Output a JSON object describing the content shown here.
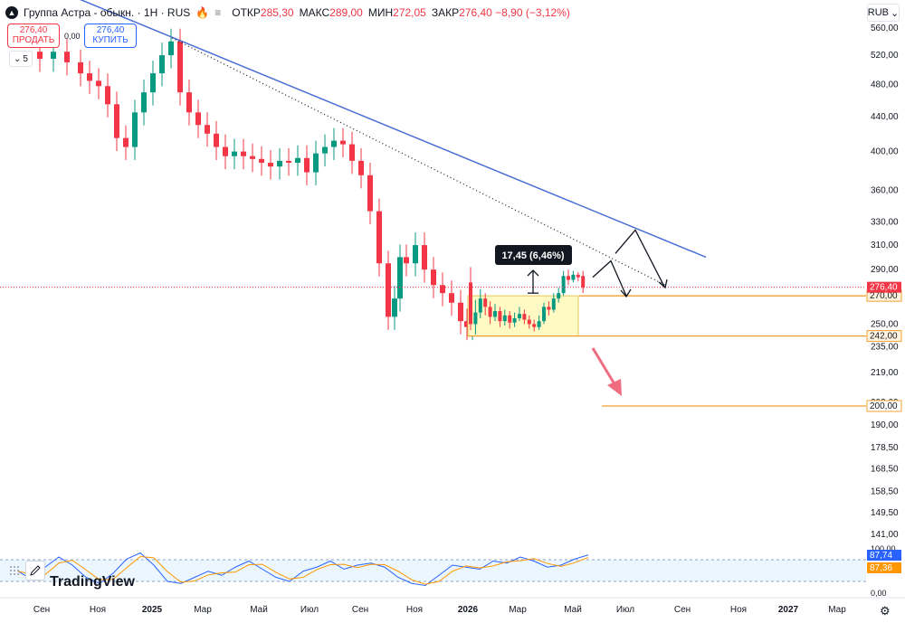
{
  "header": {
    "symbol": "Группа Астра - обыкн. · 1Н · RUS",
    "ohlc": [
      {
        "label": "ОТКР",
        "value": "285,30"
      },
      {
        "label": "МАКС",
        "value": "289,00"
      },
      {
        "label": "МИН",
        "value": "272,05"
      },
      {
        "label": "ЗАКР",
        "value": "276,40 −8,90 (−3,12%)"
      }
    ]
  },
  "trade": {
    "sell_price": "276,40",
    "sell_label": "ПРОДАТЬ",
    "buy_price": "276,40",
    "buy_label": "КУПИТЬ",
    "spread": "0,00"
  },
  "indicator_collapse": "5",
  "currency": "RUB",
  "tv_logo_text": "TradingView",
  "icons": [
    "astra-logo-icon",
    "flame-icon",
    "more-icon",
    "chevron-down-icon",
    "pencil-icon",
    "settings-icon"
  ],
  "colors": {
    "up": "#089981",
    "down": "#f23645",
    "trendline": "#4a6fd4",
    "level": "#f0a030",
    "arrow_red": "#f06c80"
  },
  "chart_data": {
    "type": "candlestick",
    "y_scale": "log",
    "y_ticks": [
      "560,00",
      "520,00",
      "480,00",
      "440,00",
      "400,00",
      "360,00",
      "330,00",
      "310,00",
      "290,00",
      "270,00",
      "250,00",
      "235,00",
      "219,00",
      "202,00",
      "190,00",
      "178,50",
      "168,50",
      "158,50",
      "149,50",
      "141,00"
    ],
    "x_ticks": [
      "Сен",
      "Ноя",
      "2025",
      "Мар",
      "Май",
      "Июл",
      "Сен",
      "Ноя",
      "2026",
      "Мар",
      "Май",
      "Июл",
      "Сен",
      "Ноя",
      "2027",
      "Мар"
    ],
    "last_price": "276,40",
    "levels": [
      {
        "label": "270,00",
        "value": 270
      },
      {
        "label": "242,00",
        "value": 242
      },
      {
        "label": "200,00",
        "value": 200
      }
    ],
    "annotation": "17,45 (6,46%)",
    "candles": [
      [
        280,
        250,
        292,
        246
      ],
      [
        250,
        258,
        267,
        243
      ],
      [
        258,
        268,
        275,
        254
      ],
      [
        268,
        262,
        272,
        256
      ],
      [
        262,
        255,
        266,
        250
      ],
      [
        255,
        259,
        264,
        252
      ],
      [
        259,
        252,
        262,
        248
      ],
      [
        252,
        256,
        260,
        249
      ],
      [
        256,
        251,
        259,
        247
      ],
      [
        251,
        254,
        258,
        248
      ],
      [
        254,
        257,
        262,
        252
      ],
      [
        257,
        253,
        260,
        250
      ],
      [
        253,
        250,
        256,
        247
      ],
      [
        250,
        248,
        253,
        245
      ],
      [
        248,
        252,
        256,
        246
      ],
      [
        252,
        262,
        265,
        250
      ],
      [
        262,
        260,
        266,
        256
      ],
      [
        260,
        268,
        272,
        258
      ],
      [
        268,
        272,
        276,
        265
      ],
      [
        272,
        285,
        289,
        270
      ],
      [
        285,
        282,
        290,
        278
      ],
      [
        282,
        286,
        289,
        280
      ],
      [
        286,
        284,
        288,
        281
      ],
      [
        285,
        276,
        289,
        272
      ]
    ],
    "oscillator": {
      "label_upper": "100,00",
      "label_lower": "0,00",
      "k_value": "87,74",
      "d_value": "87,36"
    }
  }
}
